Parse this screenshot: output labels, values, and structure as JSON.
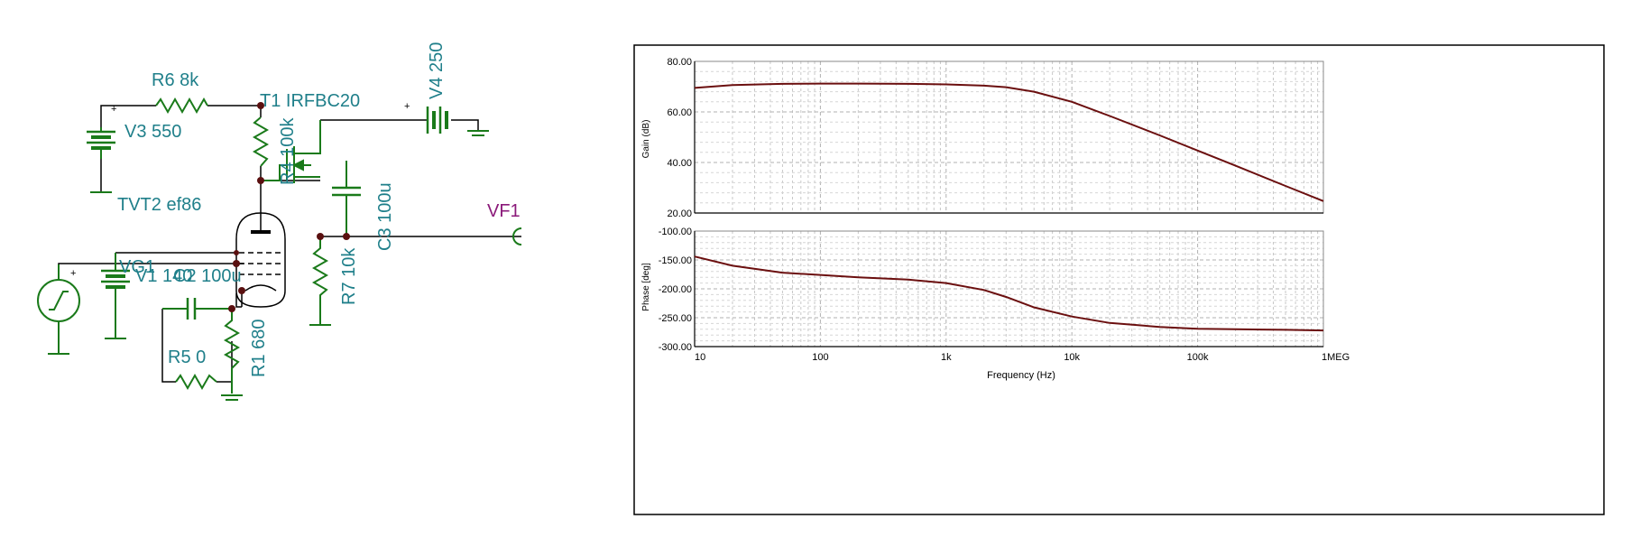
{
  "schematic": {
    "labels": {
      "r6": "R6 8k",
      "t1": "T1 IRFBC20",
      "v4": "V4 250",
      "v3": "V3 550",
      "r4": "R4 100k",
      "c3": "C3 100u",
      "tvt2": "TVT2 ef86",
      "vf1": "VF1",
      "vg1": "VG1",
      "v1": "V1 140",
      "c2": "C2 100u",
      "r7": "R7 10k",
      "r5": "R5 0",
      "r1": "R1 680",
      "plus": "+"
    },
    "colors": {
      "wire": "#000000",
      "component": "#1a7a1a",
      "label": "#1f7f8a",
      "probe": "#8b1a7a",
      "node": "#5a1010"
    }
  },
  "chart_data": [
    {
      "type": "line",
      "xscale": "log",
      "xlim": [
        10,
        1000000
      ],
      "xticks": [
        10,
        100,
        1000,
        10000,
        100000,
        1000000
      ],
      "xtick_labels": [
        "10",
        "100",
        "1k",
        "10k",
        "100k",
        "1MEG"
      ],
      "xlabel": "Frequency (Hz)",
      "ylabel": "Gain (dB)",
      "ylim": [
        20,
        80
      ],
      "yticks": [
        20,
        40,
        60,
        80
      ],
      "ytick_labels": [
        "20.00",
        "40.00",
        "60.00",
        "80.00"
      ],
      "grid": true,
      "line_color": "#6b0f0f",
      "x": [
        10,
        20,
        50,
        100,
        200,
        500,
        1000,
        2000,
        3000,
        5000,
        10000,
        20000,
        50000,
        100000,
        200000,
        500000,
        1000000
      ],
      "y": [
        69.5,
        70.6,
        71.1,
        71.2,
        71.2,
        71.1,
        70.9,
        70.4,
        69.8,
        68.0,
        64.0,
        58.4,
        50.7,
        44.7,
        38.7,
        30.7,
        24.7
      ]
    },
    {
      "type": "line",
      "xscale": "log",
      "xlim": [
        10,
        1000000
      ],
      "xticks": [
        10,
        100,
        1000,
        10000,
        100000,
        1000000
      ],
      "xtick_labels": [
        "10",
        "100",
        "1k",
        "10k",
        "100k",
        "1MEG"
      ],
      "xlabel": "Frequency (Hz)",
      "ylabel": "Phase [deg]",
      "ylim": [
        -300,
        -100
      ],
      "yticks": [
        -300,
        -250,
        -200,
        -150,
        -100
      ],
      "ytick_labels": [
        "-300.00",
        "-250.00",
        "-200.00",
        "-150.00",
        "-100.00"
      ],
      "grid": true,
      "line_color": "#6b0f0f",
      "x": [
        10,
        20,
        50,
        100,
        200,
        500,
        1000,
        2000,
        3000,
        5000,
        10000,
        20000,
        50000,
        100000,
        200000,
        500000,
        1000000
      ],
      "y": [
        -144,
        -160,
        -172,
        -176,
        -180,
        -184,
        -190,
        -202,
        -214,
        -232,
        -248,
        -259,
        -266,
        -269,
        -270,
        -271,
        -272
      ]
    }
  ]
}
